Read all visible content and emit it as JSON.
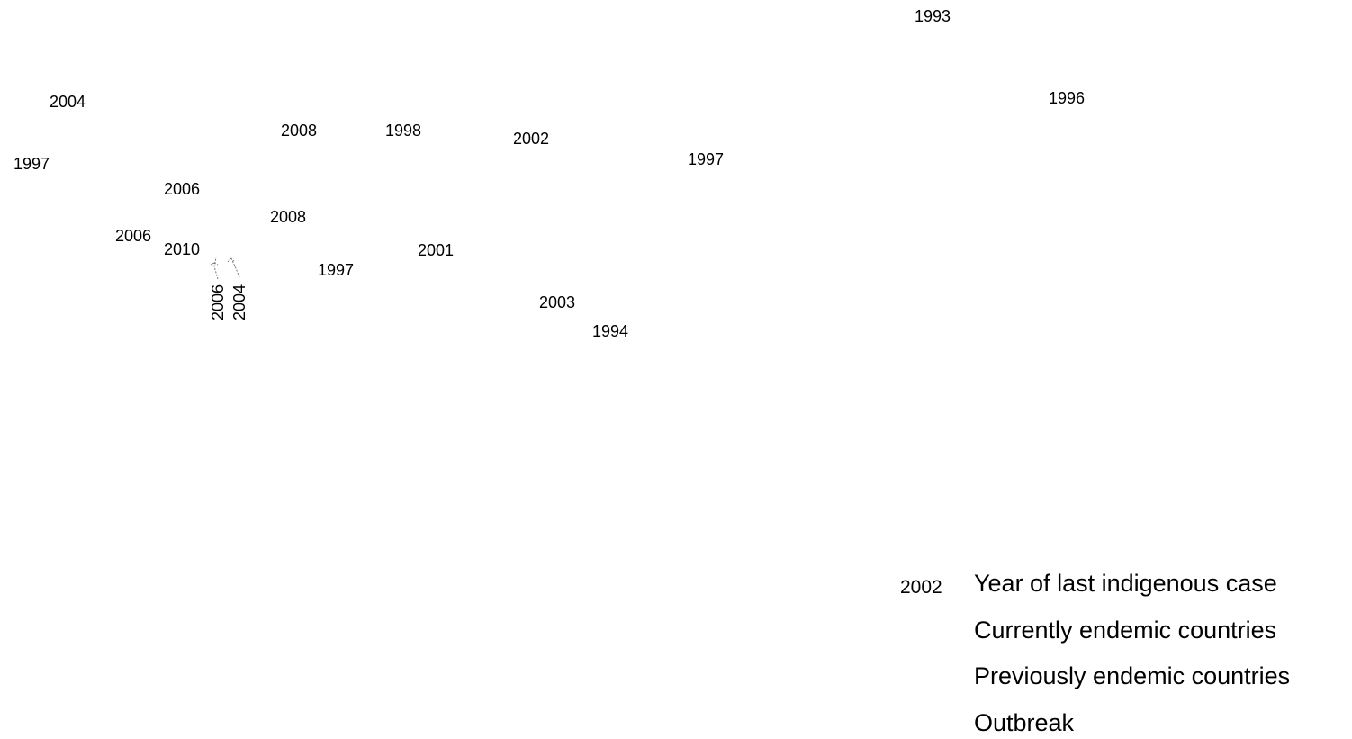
{
  "map": {
    "year_labels": [
      {
        "id": "label-1993",
        "text": "1993"
      },
      {
        "id": "label-1996",
        "text": "1996"
      },
      {
        "id": "label-2004-a",
        "text": "2004"
      },
      {
        "id": "label-2008-a",
        "text": "2008"
      },
      {
        "id": "label-1998",
        "text": "1998"
      },
      {
        "id": "label-2002",
        "text": "2002"
      },
      {
        "id": "label-1997-a",
        "text": "1997"
      },
      {
        "id": "label-1997-b",
        "text": "1997"
      },
      {
        "id": "label-2006-a",
        "text": "2006"
      },
      {
        "id": "label-2008-b",
        "text": "2008"
      },
      {
        "id": "label-2006-b",
        "text": "2006"
      },
      {
        "id": "label-2010",
        "text": "2010"
      },
      {
        "id": "label-2001",
        "text": "2001"
      },
      {
        "id": "label-1997-c",
        "text": "1997"
      },
      {
        "id": "label-2003",
        "text": "2003"
      },
      {
        "id": "label-1994",
        "text": "1994"
      },
      {
        "id": "label-2006-c",
        "text": "2006"
      },
      {
        "id": "label-2004-b",
        "text": "2004"
      }
    ]
  },
  "legend": {
    "sample_year": "2002",
    "items": [
      {
        "label": "Year of last indigenous  case"
      },
      {
        "label": "Currently endemic countries"
      },
      {
        "label": "Previously endemic countries"
      },
      {
        "label": "Outbreak"
      }
    ]
  }
}
